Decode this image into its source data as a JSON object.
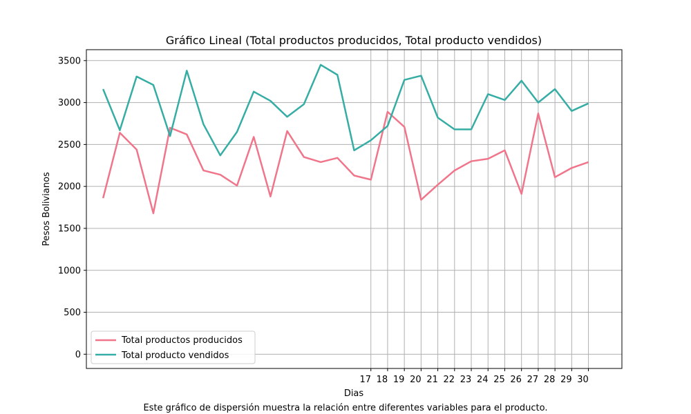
{
  "chart_data": {
    "type": "line",
    "title": "Gráfico Lineal (Total productos producidos, Total producto vendidos)",
    "xlabel": "Dias",
    "ylabel": "Pesos Bolivianos",
    "x": [
      1,
      2,
      3,
      4,
      5,
      6,
      7,
      8,
      9,
      10,
      11,
      12,
      13,
      14,
      15,
      16,
      17,
      18,
      19,
      20,
      21,
      22,
      23,
      24,
      25,
      26,
      27,
      28,
      29,
      30
    ],
    "x_tick_labels": [
      "17",
      "18",
      "19",
      "20",
      "21",
      "22",
      "23",
      "24",
      "25",
      "26",
      "27",
      "28",
      "29",
      "30"
    ],
    "xlim": [
      0,
      32
    ],
    "ylim": [
      -170,
      3630
    ],
    "y_ticks": [
      0,
      500,
      1000,
      1500,
      2000,
      2500,
      3000,
      3500
    ],
    "grid": true,
    "legend_position": "lower-left",
    "series": [
      {
        "name": "Total productos producidos",
        "color": "#f0758a",
        "values": [
          1860,
          2640,
          2440,
          1680,
          2700,
          2620,
          2190,
          2140,
          2010,
          2590,
          1880,
          2660,
          2350,
          2290,
          2340,
          2130,
          2080,
          2890,
          2710,
          1840,
          2020,
          2190,
          2300,
          2330,
          2430,
          1910,
          2870,
          2110,
          2220,
          2290
        ]
      },
      {
        "name": "Total producto vendidos",
        "color": "#36ada4",
        "values": [
          3160,
          2670,
          3310,
          3210,
          2600,
          3380,
          2740,
          2370,
          2650,
          3130,
          3020,
          2830,
          2980,
          3450,
          3330,
          2430,
          2550,
          2720,
          3270,
          3320,
          2820,
          2680,
          2680,
          3100,
          3030,
          3260,
          3000,
          3160,
          2900,
          2990
        ]
      }
    ]
  },
  "caption": "Este gráfico de dispersión muestra la relación entre diferentes variables para el producto."
}
